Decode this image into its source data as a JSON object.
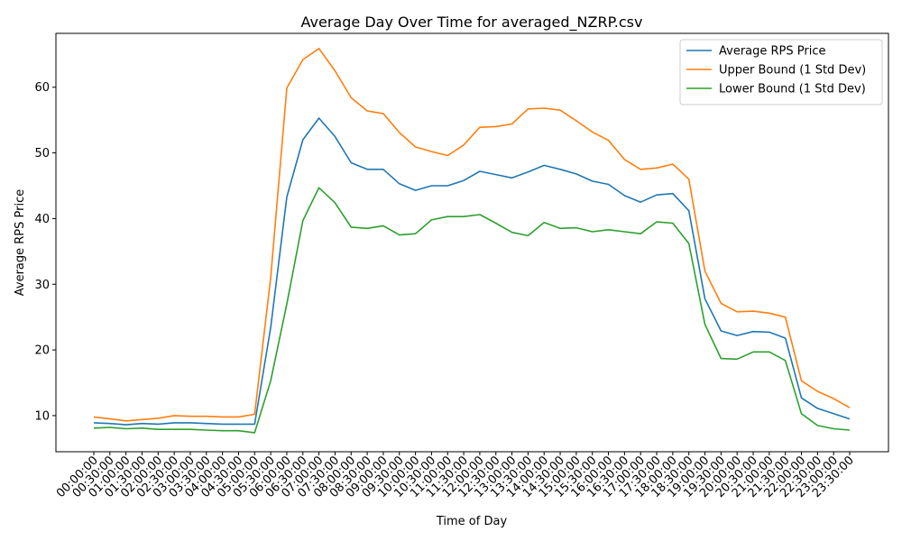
{
  "chart_data": {
    "type": "line",
    "title": "Average Day Over Time for averaged_NZRP.csv",
    "xlabel": "Time of Day",
    "ylabel": "Average RPS Price",
    "ylim": [
      4.5,
      68.2
    ],
    "yticks": [
      10,
      20,
      30,
      40,
      50,
      60
    ],
    "grid": false,
    "legend_position": "top-right",
    "categories": [
      "00:00:00",
      "00:30:00",
      "01:00:00",
      "01:30:00",
      "02:00:00",
      "02:30:00",
      "03:00:00",
      "03:30:00",
      "04:00:00",
      "04:30:00",
      "05:00:00",
      "05:30:00",
      "06:00:00",
      "06:30:00",
      "07:00:00",
      "07:30:00",
      "08:00:00",
      "08:30:00",
      "09:00:00",
      "09:30:00",
      "10:00:00",
      "10:30:00",
      "11:00:00",
      "11:30:00",
      "12:00:00",
      "12:30:00",
      "13:00:00",
      "13:30:00",
      "14:00:00",
      "14:30:00",
      "15:00:00",
      "15:30:00",
      "16:00:00",
      "16:30:00",
      "17:00:00",
      "17:30:00",
      "18:00:00",
      "18:30:00",
      "19:00:00",
      "19:30:00",
      "20:00:00",
      "20:30:00",
      "21:00:00",
      "21:30:00",
      "22:00:00",
      "22:30:00",
      "23:00:00",
      "23:30:00"
    ],
    "series": [
      {
        "name": "Average RPS Price",
        "color": "#1f77b4",
        "values": [
          8.9,
          8.8,
          8.6,
          8.8,
          8.7,
          8.9,
          8.9,
          8.8,
          8.7,
          8.7,
          8.7,
          23.4,
          43.3,
          52.0,
          55.3,
          52.5,
          48.5,
          47.5,
          47.5,
          45.3,
          44.3,
          45.0,
          45.0,
          45.8,
          47.2,
          46.7,
          46.2,
          47.1,
          48.1,
          47.5,
          46.8,
          45.7,
          45.2,
          43.5,
          42.5,
          43.6,
          43.8,
          41.2,
          27.8,
          22.9,
          22.2,
          22.8,
          22.7,
          21.8,
          12.7,
          11.1,
          10.3,
          9.5
        ]
      },
      {
        "name": "Upper Bound (1 Std Dev)",
        "color": "#ff7f0e",
        "values": [
          9.8,
          9.5,
          9.2,
          9.4,
          9.6,
          10.0,
          9.9,
          9.9,
          9.8,
          9.8,
          10.2,
          31.0,
          59.9,
          64.2,
          65.9,
          62.5,
          58.4,
          56.4,
          56.0,
          53.1,
          50.9,
          50.2,
          49.6,
          51.2,
          53.9,
          54.0,
          54.4,
          56.7,
          56.8,
          56.5,
          54.9,
          53.2,
          51.9,
          49.0,
          47.5,
          47.7,
          48.3,
          46.0,
          32.0,
          27.1,
          25.8,
          25.9,
          25.6,
          25.0,
          15.3,
          13.7,
          12.6,
          11.2
        ]
      },
      {
        "name": "Lower Bound (1 Std Dev)",
        "color": "#2ca02c",
        "values": [
          8.1,
          8.2,
          8.0,
          8.1,
          7.9,
          7.9,
          7.9,
          7.8,
          7.7,
          7.7,
          7.4,
          15.3,
          27.0,
          39.7,
          44.7,
          42.4,
          38.7,
          38.5,
          38.9,
          37.5,
          37.7,
          39.8,
          40.3,
          40.3,
          40.6,
          39.3,
          37.9,
          37.4,
          39.4,
          38.5,
          38.6,
          38.0,
          38.3,
          38.0,
          37.7,
          39.5,
          39.3,
          36.2,
          23.9,
          18.7,
          18.6,
          19.7,
          19.7,
          18.4,
          10.3,
          8.5,
          8.0,
          7.8
        ]
      }
    ]
  }
}
